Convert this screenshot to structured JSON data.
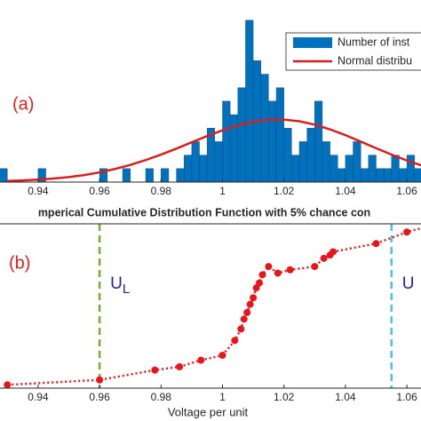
{
  "chart_data": [
    {
      "type": "histogram",
      "annotation": "(a)",
      "bins": [
        0.9275,
        0.93,
        0.9325,
        0.935,
        0.9375,
        0.94,
        0.9425,
        0.945,
        0.9475,
        0.95,
        0.9525,
        0.955,
        0.9575,
        0.96,
        0.9625,
        0.965,
        0.9675,
        0.97,
        0.9725,
        0.975,
        0.9775,
        0.98,
        0.9825,
        0.985,
        0.9875,
        0.99,
        0.9925,
        0.995,
        0.9975,
        1.0,
        1.0025,
        1.005,
        1.0075,
        1.01,
        1.0125,
        1.015,
        1.0175,
        1.02,
        1.0225,
        1.025,
        1.0275,
        1.03,
        1.0325,
        1.035,
        1.0375,
        1.04,
        1.0425,
        1.045,
        1.0475,
        1.05,
        1.0525,
        1.055,
        1.0575,
        1.06,
        1.0625,
        1.065
      ],
      "values": [
        1,
        0,
        0,
        0,
        0,
        1,
        0,
        0,
        0,
        0,
        0,
        0,
        0,
        1,
        0,
        0,
        1,
        0,
        0,
        1,
        0,
        1,
        0,
        1,
        2,
        3,
        2,
        4,
        3,
        6,
        5,
        7,
        12,
        9,
        8,
        6,
        7,
        4,
        2,
        3,
        4,
        6,
        3,
        2,
        1,
        2,
        3,
        1,
        2,
        1,
        1,
        2,
        1,
        2,
        1
      ],
      "name": "Number of inst",
      "color": "#0072bd",
      "curve": {
        "name": "Normal distribu",
        "color": "#d62020",
        "x": [
          0.93,
          0.935,
          0.94,
          0.945,
          0.95,
          0.955,
          0.96,
          0.965,
          0.97,
          0.975,
          0.98,
          0.985,
          0.99,
          0.995,
          1.0,
          1.005,
          1.01,
          1.015,
          1.02,
          1.025,
          1.03,
          1.035,
          1.04,
          1.045,
          1.05,
          1.055,
          1.06,
          1.065
        ],
        "values": [
          0.08,
          0.12,
          0.18,
          0.26,
          0.37,
          0.52,
          0.72,
          0.97,
          1.27,
          1.63,
          2.04,
          2.48,
          2.95,
          3.41,
          3.84,
          4.2,
          4.47,
          4.62,
          4.63,
          4.51,
          4.26,
          3.91,
          3.48,
          3.0,
          2.51,
          2.04,
          1.6,
          1.22
        ]
      },
      "xlim": [
        0.9276,
        1.0646
      ],
      "ylim": [
        0,
        13.5
      ],
      "xticks": [
        0.94,
        0.96,
        0.98,
        1,
        1.02,
        1.04,
        1.06
      ],
      "legend": "upper right"
    },
    {
      "type": "line",
      "title": "mperical Cumulative Distribution Function with 5% chance con",
      "annotation": "(b)",
      "xlabel": "Voltage per unit",
      "x": [
        0.93,
        0.96,
        0.978,
        0.986,
        0.993,
        1.0,
        1.004,
        1.006,
        1.007,
        1.008,
        1.009,
        1.01,
        1.011,
        1.012,
        1.013,
        1.015,
        1.018,
        1.022,
        1.03,
        1.033,
        1.035,
        1.036,
        1.05,
        1.06,
        1.066
      ],
      "values": [
        0.02,
        0.05,
        0.11,
        0.13,
        0.17,
        0.2,
        0.29,
        0.36,
        0.42,
        0.46,
        0.51,
        0.55,
        0.61,
        0.64,
        0.69,
        0.74,
        0.7,
        0.72,
        0.74,
        0.79,
        0.81,
        0.83,
        0.88,
        0.95,
        0.98
      ],
      "color": "#e8161b",
      "reference_lines": [
        {
          "x": 0.96,
          "color": "#77ac30",
          "label": "U",
          "sub": "L"
        },
        {
          "x": 1.055,
          "color": "#4dbeee",
          "label": "U"
        }
      ],
      "xlim": [
        0.9276,
        1.0646
      ],
      "ylim": [
        0,
        1
      ],
      "xticks": [
        0.94,
        0.96,
        0.98,
        1,
        1.02,
        1.04,
        1.06
      ]
    }
  ]
}
